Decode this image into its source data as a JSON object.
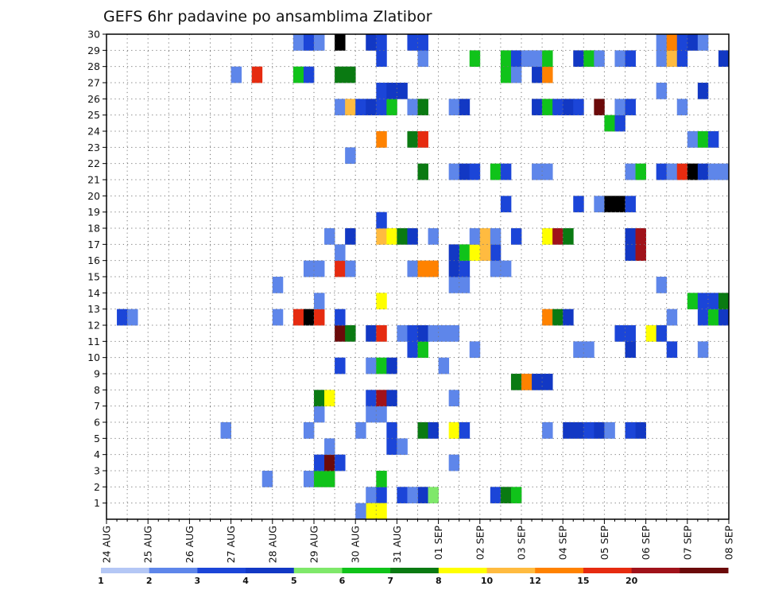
{
  "chart_data": {
    "type": "heatmap",
    "title": "GEFS 6hr padavine po ansamblima Zlatibor",
    "x_tick_labels": [
      "24 AUG",
      "25 AUG",
      "26 AUG",
      "27 AUG",
      "28 AUG",
      "29 AUG",
      "30 AUG",
      "31 AUG",
      "01 SEP",
      "02 SEP",
      "03 SEP",
      "04 SEP",
      "05 SEP",
      "06 SEP",
      "07 SEP",
      "08 SEP"
    ],
    "x_unit": "6-hour step",
    "x_range": [
      0,
      60
    ],
    "y_tick_labels": [
      "1",
      "2",
      "3",
      "4",
      "5",
      "6",
      "7",
      "8",
      "9",
      "10",
      "11",
      "12",
      "13",
      "14",
      "15",
      "16",
      "17",
      "18",
      "19",
      "20",
      "21",
      "22",
      "23",
      "24",
      "25",
      "26",
      "27",
      "28",
      "29",
      "30"
    ],
    "y_range": [
      0,
      30
    ],
    "grid": true,
    "colorbar": {
      "labels": [
        "1",
        "2",
        "3",
        "4",
        "5",
        "6",
        "7",
        "8",
        "10",
        "12",
        "15",
        "20"
      ],
      "colors": [
        "#b4c7f5",
        "#5e86ea",
        "#1b45d8",
        "#1238c4",
        "#7fe86a",
        "#10c31a",
        "#0a7a12",
        "#ffff00",
        "#ffbb40",
        "#ff8200",
        "#e62b10",
        "#a0121a",
        "#6b0a0a"
      ]
    },
    "cells": [
      [
        1,
        1,
        25
      ],
      [
        2,
        1,
        26
      ],
      [
        2,
        1,
        28
      ],
      [
        3,
        1,
        30
      ],
      [
        1,
        1,
        29
      ],
      [
        4,
        1,
        31
      ],
      [
        2,
        1,
        37
      ],
      [
        6,
        1,
        38
      ],
      [
        5,
        1,
        39
      ],
      [
        7,
        0,
        25
      ],
      [
        7,
        0,
        26
      ],
      [
        1,
        0,
        24
      ],
      [
        1,
        2,
        15
      ],
      [
        1,
        2,
        19
      ],
      [
        5,
        2,
        20
      ],
      [
        5,
        2,
        21
      ],
      [
        5,
        2,
        26
      ],
      [
        2,
        3,
        20
      ],
      [
        12,
        3,
        21
      ],
      [
        2,
        3,
        22
      ],
      [
        1,
        3,
        33
      ],
      [
        1,
        4,
        21
      ],
      [
        2,
        4,
        27
      ],
      [
        1,
        4,
        28
      ],
      [
        1,
        5,
        11
      ],
      [
        1,
        5,
        19
      ],
      [
        1,
        5,
        24
      ],
      [
        2,
        5,
        27
      ],
      [
        6,
        5,
        30
      ],
      [
        3,
        5,
        31
      ],
      [
        7,
        5,
        33
      ],
      [
        2,
        5,
        34
      ],
      [
        1,
        5,
        42
      ],
      [
        3,
        5,
        44
      ],
      [
        3,
        5,
        45
      ],
      [
        2,
        5,
        46
      ],
      [
        3,
        5,
        47
      ],
      [
        1,
        5,
        48
      ],
      [
        2,
        5,
        50
      ],
      [
        3,
        5,
        51
      ],
      [
        1,
        6,
        20
      ],
      [
        1,
        6,
        25
      ],
      [
        1,
        6,
        26
      ],
      [
        6,
        7,
        20
      ],
      [
        7,
        7,
        21
      ],
      [
        2,
        7,
        25
      ],
      [
        11,
        7,
        26
      ],
      [
        3,
        7,
        27
      ],
      [
        1,
        7,
        33
      ],
      [
        6,
        8,
        39
      ],
      [
        9,
        8,
        40
      ],
      [
        3,
        8,
        41
      ],
      [
        3,
        8,
        42
      ],
      [
        2,
        9,
        22
      ],
      [
        1,
        9,
        25
      ],
      [
        5,
        9,
        26
      ],
      [
        3,
        9,
        27
      ],
      [
        1,
        9,
        32
      ],
      [
        2,
        10,
        29
      ],
      [
        5,
        10,
        30
      ],
      [
        1,
        10,
        35
      ],
      [
        1,
        10,
        45
      ],
      [
        1,
        10,
        46
      ],
      [
        3,
        10,
        50
      ],
      [
        2,
        10,
        54
      ],
      [
        1,
        10,
        57
      ],
      [
        12,
        11,
        22
      ],
      [
        6,
        11,
        23
      ],
      [
        3,
        11,
        25
      ],
      [
        10,
        11,
        26
      ],
      [
        1,
        11,
        28
      ],
      [
        2,
        11,
        29
      ],
      [
        3,
        11,
        30
      ],
      [
        1,
        11,
        31
      ],
      [
        1,
        11,
        32
      ],
      [
        1,
        11,
        33
      ],
      [
        2,
        11,
        49
      ],
      [
        2,
        11,
        50
      ],
      [
        7,
        11,
        52
      ],
      [
        2,
        11,
        53
      ],
      [
        2,
        12,
        1
      ],
      [
        1,
        12,
        2
      ],
      [
        1,
        12,
        16
      ],
      [
        10,
        12,
        18
      ],
      [
        13,
        12,
        19
      ],
      [
        10,
        12,
        20
      ],
      [
        2,
        12,
        22
      ],
      [
        9,
        12,
        42
      ],
      [
        6,
        12,
        43
      ],
      [
        3,
        12,
        44
      ],
      [
        1,
        12,
        54
      ],
      [
        2,
        12,
        57
      ],
      [
        5,
        12,
        58
      ],
      [
        3,
        12,
        59
      ],
      [
        1,
        13,
        20
      ],
      [
        7,
        13,
        26
      ],
      [
        5,
        13,
        56
      ],
      [
        2,
        13,
        57
      ],
      [
        2,
        13,
        58
      ],
      [
        6,
        13,
        59
      ],
      [
        1,
        14,
        16
      ],
      [
        1,
        14,
        33
      ],
      [
        1,
        14,
        34
      ],
      [
        1,
        14,
        53
      ],
      [
        1,
        15,
        19
      ],
      [
        1,
        15,
        20
      ],
      [
        10,
        15,
        22
      ],
      [
        1,
        15,
        23
      ],
      [
        1,
        15,
        29
      ],
      [
        9,
        15,
        30
      ],
      [
        9,
        15,
        31
      ],
      [
        3,
        15,
        33
      ],
      [
        2,
        15,
        34
      ],
      [
        1,
        15,
        37
      ],
      [
        1,
        15,
        38
      ],
      [
        1,
        16,
        22
      ],
      [
        2,
        16,
        37
      ],
      [
        5,
        16,
        34
      ],
      [
        3,
        16,
        33
      ],
      [
        7,
        16,
        35
      ],
      [
        8,
        16,
        36
      ],
      [
        3,
        16,
        50
      ],
      [
        11,
        16,
        51
      ],
      [
        1,
        17,
        21
      ],
      [
        3,
        17,
        23
      ],
      [
        8,
        17,
        26
      ],
      [
        7,
        17,
        27
      ],
      [
        6,
        17,
        28
      ],
      [
        3,
        17,
        29
      ],
      [
        1,
        17,
        31
      ],
      [
        1,
        17,
        35
      ],
      [
        8,
        17,
        36
      ],
      [
        1,
        17,
        37
      ],
      [
        2,
        17,
        39
      ],
      [
        7,
        17,
        42
      ],
      [
        11,
        17,
        43
      ],
      [
        6,
        17,
        44
      ],
      [
        3,
        17,
        50
      ],
      [
        11,
        17,
        51
      ],
      [
        2,
        18,
        26
      ],
      [
        2,
        19,
        38
      ],
      [
        2,
        19,
        45
      ],
      [
        1,
        19,
        47
      ],
      [
        13,
        19,
        48
      ],
      [
        13,
        19,
        49
      ],
      [
        2,
        19,
        50
      ],
      [
        6,
        21,
        30
      ],
      [
        1,
        21,
        33
      ],
      [
        3,
        21,
        34
      ],
      [
        2,
        21,
        35
      ],
      [
        5,
        21,
        37
      ],
      [
        2,
        21,
        38
      ],
      [
        1,
        21,
        41
      ],
      [
        1,
        21,
        42
      ],
      [
        1,
        21,
        50
      ],
      [
        5,
        21,
        51
      ],
      [
        2,
        21,
        53
      ],
      [
        1,
        21,
        54
      ],
      [
        10,
        21,
        55
      ],
      [
        13,
        21,
        56
      ],
      [
        3,
        21,
        57
      ],
      [
        1,
        21,
        58
      ],
      [
        1,
        21,
        59
      ],
      [
        1,
        22,
        23
      ],
      [
        9,
        23,
        26
      ],
      [
        6,
        23,
        29
      ],
      [
        10,
        23,
        30
      ],
      [
        1,
        23,
        56
      ],
      [
        5,
        23,
        57
      ],
      [
        2,
        23,
        58
      ],
      [
        5,
        24,
        48
      ],
      [
        2,
        24,
        49
      ],
      [
        1,
        25,
        22
      ],
      [
        8,
        25,
        23
      ],
      [
        2,
        25,
        24
      ],
      [
        3,
        25,
        25
      ],
      [
        2,
        25,
        26
      ],
      [
        5,
        25,
        27
      ],
      [
        1,
        25,
        29
      ],
      [
        6,
        25,
        30
      ],
      [
        1,
        25,
        33
      ],
      [
        3,
        25,
        34
      ],
      [
        3,
        25,
        41
      ],
      [
        5,
        25,
        42
      ],
      [
        2,
        25,
        43
      ],
      [
        3,
        25,
        44
      ],
      [
        2,
        25,
        45
      ],
      [
        12,
        25,
        47
      ],
      [
        1,
        25,
        49
      ],
      [
        2,
        25,
        50
      ],
      [
        1,
        25,
        55
      ],
      [
        2,
        26,
        26
      ],
      [
        3,
        26,
        27
      ],
      [
        3,
        26,
        28
      ],
      [
        1,
        26,
        53
      ],
      [
        3,
        26,
        57
      ],
      [
        1,
        27,
        12
      ],
      [
        10,
        27,
        14
      ],
      [
        5,
        27,
        18
      ],
      [
        2,
        27,
        19
      ],
      [
        6,
        27,
        22
      ],
      [
        6,
        27,
        23
      ],
      [
        5,
        27,
        38
      ],
      [
        1,
        27,
        39
      ],
      [
        3,
        27,
        41
      ],
      [
        9,
        27,
        42
      ],
      [
        2,
        28,
        26
      ],
      [
        1,
        28,
        30
      ],
      [
        5,
        28,
        35
      ],
      [
        5,
        28,
        38
      ],
      [
        2,
        28,
        39
      ],
      [
        1,
        28,
        40
      ],
      [
        1,
        28,
        41
      ],
      [
        5,
        28,
        42
      ],
      [
        3,
        28,
        45
      ],
      [
        5,
        28,
        46
      ],
      [
        1,
        28,
        47
      ],
      [
        1,
        28,
        49
      ],
      [
        2,
        28,
        50
      ],
      [
        1,
        28,
        53
      ],
      [
        8,
        28,
        54
      ],
      [
        2,
        28,
        55
      ],
      [
        3,
        28,
        59
      ],
      [
        1,
        29,
        18
      ],
      [
        2,
        29,
        19
      ],
      [
        1,
        29,
        20
      ],
      [
        13,
        29,
        22
      ],
      [
        3,
        29,
        25
      ],
      [
        2,
        29,
        26
      ],
      [
        2,
        29,
        29
      ],
      [
        2,
        29,
        30
      ],
      [
        1,
        29,
        53
      ],
      [
        9,
        29,
        54
      ],
      [
        2,
        29,
        55
      ],
      [
        3,
        29,
        56
      ],
      [
        1,
        29,
        57
      ]
    ]
  }
}
